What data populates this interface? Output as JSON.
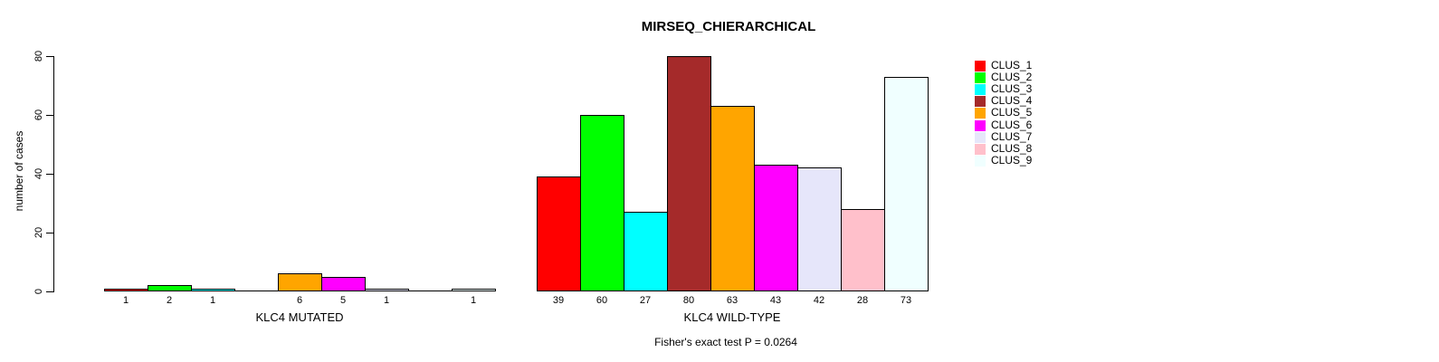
{
  "chart_data": {
    "type": "bar",
    "title": "MIRSEQ_CHIERARCHICAL",
    "ylabel": "number of cases",
    "xlabel": "",
    "ylim": [
      0,
      80
    ],
    "yticks": [
      0,
      20,
      40,
      60,
      80
    ],
    "grid": false,
    "legend_position": "right",
    "categories": [
      "CLUS_1",
      "CLUS_2",
      "CLUS_3",
      "CLUS_4",
      "CLUS_5",
      "CLUS_6",
      "CLUS_7",
      "CLUS_8",
      "CLUS_9"
    ],
    "colors": [
      "#ff0000",
      "#00ff00",
      "#00ffff",
      "#a52a2a",
      "#ffa500",
      "#ff00ff",
      "#e6e6fa",
      "#ffc0cb",
      "#f0ffff"
    ],
    "groups": [
      {
        "label": "KLC4 MUTATED",
        "values": [
          1,
          2,
          1,
          0,
          6,
          5,
          1,
          0,
          1
        ]
      },
      {
        "label": "KLC4 WILD-TYPE",
        "values": [
          39,
          60,
          27,
          80,
          63,
          43,
          42,
          28,
          73
        ]
      }
    ],
    "bar_value_labels": {
      "KLC4 MUTATED": [
        "1",
        "2",
        "1",
        "",
        "6",
        "5",
        "1",
        "",
        "1"
      ],
      "KLC4 WILD-TYPE": [
        "39",
        "60",
        "27",
        "80",
        "63",
        "43",
        "42",
        "28",
        "73"
      ]
    },
    "footer": "Fisher's exact test P = 0.0264"
  }
}
